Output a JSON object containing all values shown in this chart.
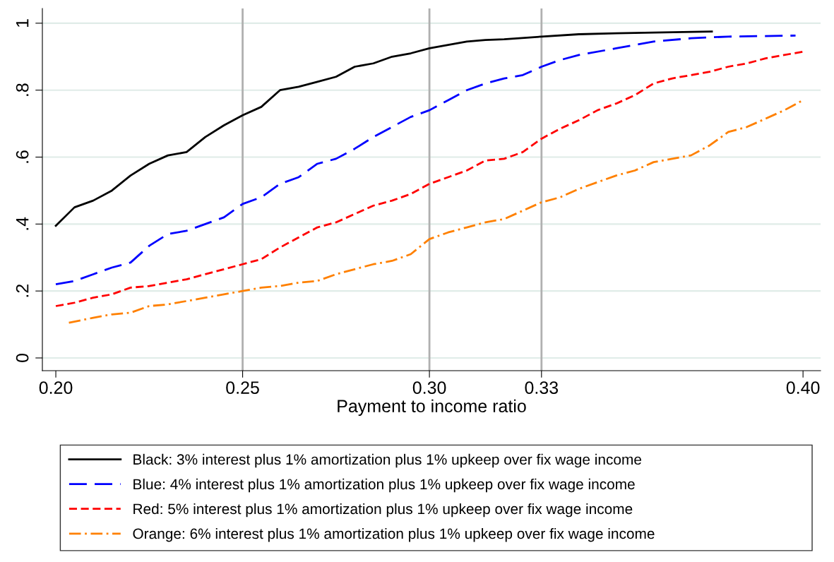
{
  "chart_data": {
    "type": "line",
    "xlabel": "Payment to income ratio",
    "xlim": [
      0.1964,
      0.4047
    ],
    "ylim": [
      -0.038,
      1.044
    ],
    "xticks": [
      {
        "value": 0.2,
        "label": "0.20"
      },
      {
        "value": 0.25,
        "label": "0.25"
      },
      {
        "value": 0.3,
        "label": "0.30"
      },
      {
        "value": 0.33,
        "label": "0.33"
      },
      {
        "value": 0.4,
        "label": "0.40"
      }
    ],
    "yticks": [
      {
        "value": 0,
        "label": "0"
      },
      {
        "value": 0.2,
        "label": ".2"
      },
      {
        "value": 0.4,
        "label": ".4"
      },
      {
        "value": 0.6,
        "label": ".6"
      },
      {
        "value": 0.8,
        "label": ".8"
      },
      {
        "value": 1,
        "label": "1"
      }
    ],
    "grid": "y",
    "legend": "bottom",
    "marker": "none",
    "ref_lines": [
      {
        "axis": "x",
        "value": 0.25,
        "color": "#b0b0b0"
      },
      {
        "axis": "x",
        "value": 0.3,
        "color": "#b0b0b0"
      },
      {
        "axis": "x",
        "value": 0.33,
        "color": "#b0b0b0"
      }
    ],
    "series": [
      {
        "name": "Black: 3% interest plus 1% amortization plus 1% upkeep over fix wage income",
        "color": "#000000",
        "line_style": "solid",
        "x": [
          0.2,
          0.205,
          0.21,
          0.215,
          0.22,
          0.225,
          0.23,
          0.235,
          0.24,
          0.245,
          0.25,
          0.255,
          0.26,
          0.265,
          0.27,
          0.275,
          0.28,
          0.285,
          0.29,
          0.295,
          0.3,
          0.305,
          0.31,
          0.315,
          0.32,
          0.33,
          0.34,
          0.35,
          0.36,
          0.3756
        ],
        "values": [
          0.395,
          0.45,
          0.47,
          0.5,
          0.545,
          0.58,
          0.605,
          0.615,
          0.66,
          0.695,
          0.725,
          0.75,
          0.8,
          0.81,
          0.825,
          0.84,
          0.87,
          0.88,
          0.9,
          0.91,
          0.925,
          0.935,
          0.945,
          0.95,
          0.952,
          0.96,
          0.967,
          0.97,
          0.972,
          0.975
        ]
      },
      {
        "name": "Blue: 4% interest plus 1% amortization plus 1% upkeep over fix wage income",
        "color": "#0000ff",
        "line_style": "dashed",
        "x": [
          0.2,
          0.205,
          0.21,
          0.215,
          0.22,
          0.225,
          0.23,
          0.235,
          0.24,
          0.245,
          0.25,
          0.255,
          0.26,
          0.265,
          0.27,
          0.275,
          0.28,
          0.285,
          0.29,
          0.295,
          0.3,
          0.305,
          0.31,
          0.315,
          0.32,
          0.325,
          0.33,
          0.335,
          0.34,
          0.35,
          0.355,
          0.36,
          0.37,
          0.38,
          0.398
        ],
        "values": [
          0.22,
          0.23,
          0.25,
          0.27,
          0.285,
          0.335,
          0.37,
          0.38,
          0.4,
          0.42,
          0.46,
          0.48,
          0.52,
          0.54,
          0.58,
          0.595,
          0.625,
          0.66,
          0.69,
          0.72,
          0.74,
          0.77,
          0.8,
          0.82,
          0.835,
          0.845,
          0.87,
          0.89,
          0.905,
          0.925,
          0.935,
          0.945,
          0.955,
          0.96,
          0.963
        ]
      },
      {
        "name": "Red: 5% interest plus 1% amortization plus 1% upkeep over fix wage income",
        "color": "#ff0000",
        "line_style": "dotted",
        "x": [
          0.2,
          0.205,
          0.21,
          0.215,
          0.22,
          0.225,
          0.23,
          0.235,
          0.24,
          0.245,
          0.25,
          0.255,
          0.26,
          0.265,
          0.27,
          0.275,
          0.28,
          0.285,
          0.29,
          0.295,
          0.3,
          0.305,
          0.31,
          0.315,
          0.32,
          0.325,
          0.33,
          0.335,
          0.34,
          0.345,
          0.35,
          0.355,
          0.36,
          0.365,
          0.37,
          0.375,
          0.38,
          0.385,
          0.39,
          0.4
        ],
        "values": [
          0.155,
          0.165,
          0.18,
          0.19,
          0.21,
          0.215,
          0.225,
          0.235,
          0.25,
          0.265,
          0.28,
          0.295,
          0.33,
          0.36,
          0.39,
          0.405,
          0.43,
          0.455,
          0.47,
          0.49,
          0.52,
          0.54,
          0.56,
          0.59,
          0.595,
          0.615,
          0.655,
          0.685,
          0.71,
          0.74,
          0.76,
          0.785,
          0.82,
          0.835,
          0.845,
          0.855,
          0.87,
          0.88,
          0.895,
          0.915
        ]
      },
      {
        "name": "Orange: 6% interest plus 1% amortization plus 1% upkeep over fix wage income",
        "color": "#ff8000",
        "line_style": "dashdot",
        "x": [
          0.2035,
          0.21,
          0.215,
          0.22,
          0.225,
          0.23,
          0.235,
          0.24,
          0.245,
          0.25,
          0.255,
          0.26,
          0.265,
          0.27,
          0.275,
          0.28,
          0.285,
          0.29,
          0.295,
          0.3,
          0.305,
          0.31,
          0.315,
          0.32,
          0.325,
          0.33,
          0.335,
          0.34,
          0.345,
          0.35,
          0.355,
          0.36,
          0.365,
          0.37,
          0.375,
          0.38,
          0.385,
          0.39,
          0.395,
          0.4
        ],
        "values": [
          0.105,
          0.12,
          0.13,
          0.135,
          0.155,
          0.16,
          0.17,
          0.18,
          0.19,
          0.2,
          0.21,
          0.215,
          0.225,
          0.23,
          0.25,
          0.265,
          0.28,
          0.29,
          0.31,
          0.355,
          0.375,
          0.39,
          0.405,
          0.415,
          0.44,
          0.465,
          0.48,
          0.505,
          0.525,
          0.545,
          0.56,
          0.585,
          0.595,
          0.605,
          0.635,
          0.675,
          0.69,
          0.715,
          0.74,
          0.77
        ]
      }
    ]
  }
}
